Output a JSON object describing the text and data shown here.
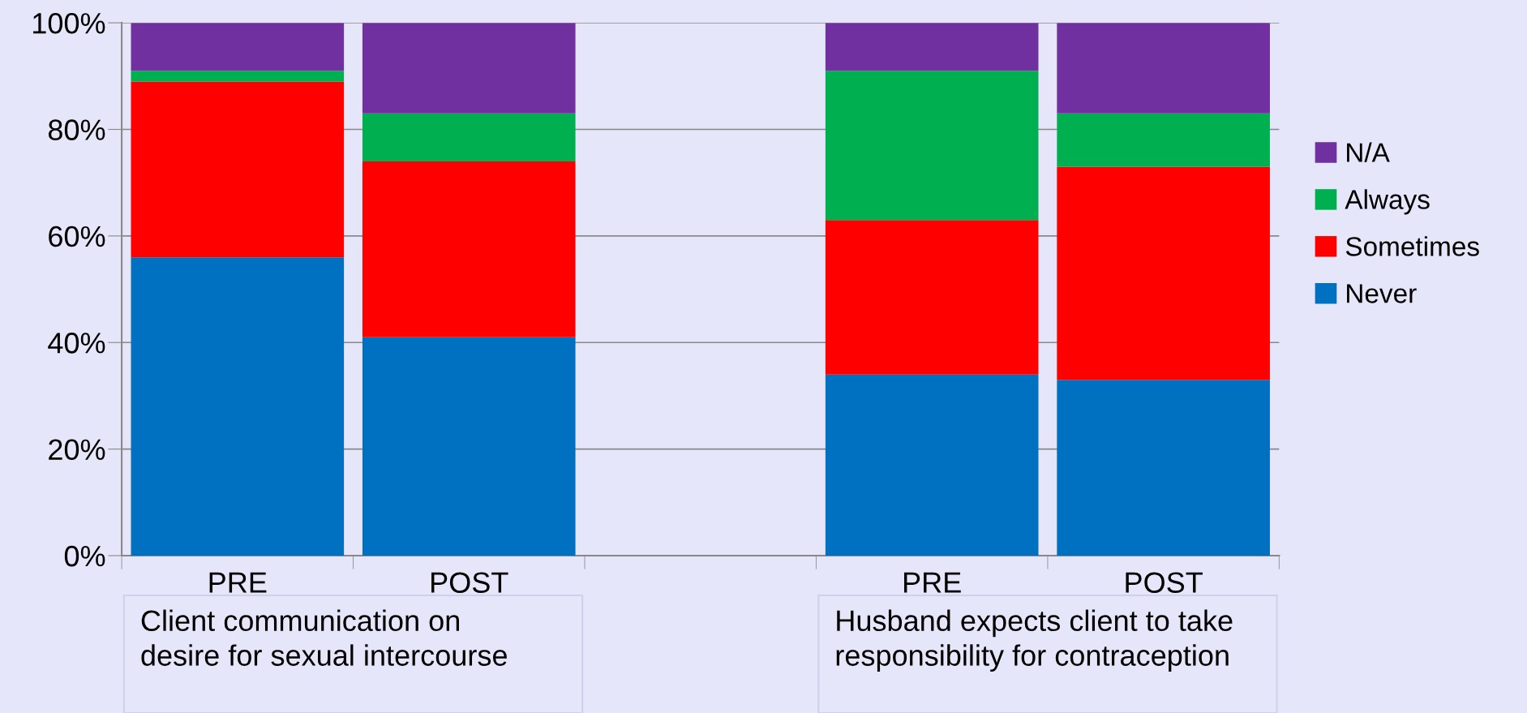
{
  "chart_data": {
    "type": "bar",
    "stacked": true,
    "categories": [
      "PRE",
      "POST",
      null,
      "PRE",
      "POST"
    ],
    "series": [
      {
        "name": "Never",
        "color": "#0070c0",
        "values": [
          56,
          41,
          null,
          34,
          33
        ]
      },
      {
        "name": "Sometimes",
        "color": "#ff0000",
        "values": [
          33,
          33,
          null,
          29,
          40
        ]
      },
      {
        "name": "Always",
        "color": "#00b050",
        "values": [
          2,
          9,
          null,
          28,
          10
        ]
      },
      {
        "name": "N/A",
        "color": "#7030a0",
        "values": [
          9,
          17,
          null,
          9,
          17
        ]
      }
    ],
    "ylim": [
      0,
      100
    ],
    "yticks": [
      {
        "value": 0,
        "label": "0%"
      },
      {
        "value": 20,
        "label": "20%"
      },
      {
        "value": 40,
        "label": "40%"
      },
      {
        "value": 60,
        "label": "60%"
      },
      {
        "value": 80,
        "label": "80%"
      },
      {
        "value": 100,
        "label": "100%"
      }
    ],
    "grid": "y",
    "legend": "right",
    "annotations": [
      "Client communication on\ndesire for sexual intercourse",
      "Husband expects client to take\nresponsibility for contraception"
    ]
  }
}
